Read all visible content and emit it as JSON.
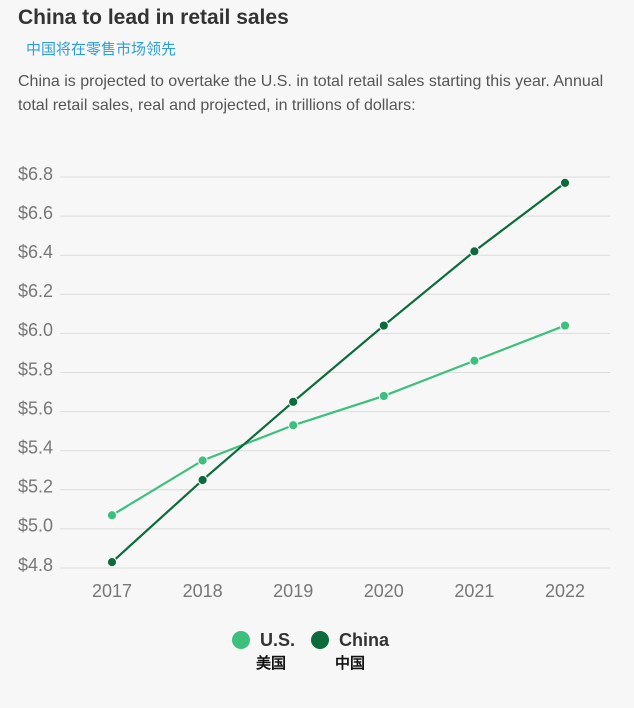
{
  "header": {
    "title": "China to lead in retail sales",
    "subtitle_cn": "中国将在零售市场领先",
    "description": "China is projected to overtake the U.S. in total retail sales starting this year. Annual total retail sales, real and projected, in trillions of dollars:"
  },
  "chart_data": {
    "type": "line",
    "title": "China to lead in retail sales",
    "ylabel": "",
    "xlabel": "",
    "x": [
      "2017",
      "2018",
      "2019",
      "2020",
      "2021",
      "2022"
    ],
    "ylim": [
      4.8,
      6.8
    ],
    "yticks": [
      4.8,
      5.0,
      5.2,
      5.4,
      5.6,
      5.8,
      6.0,
      6.2,
      6.4,
      6.6,
      6.8
    ],
    "ytick_labels": [
      "$4.8",
      "$5.0",
      "$5.2",
      "$5.4",
      "$5.6",
      "$5.8",
      "$6.0",
      "$6.2",
      "$6.4",
      "$6.6",
      "$6.8"
    ],
    "grid": true,
    "legend_position": "bottom-center",
    "series": [
      {
        "name": "U.S.",
        "name_cn": "美国",
        "color": "#3dbf7d",
        "values": [
          5.07,
          5.35,
          5.53,
          5.68,
          5.86,
          6.04
        ]
      },
      {
        "name": "China",
        "name_cn": "中国",
        "color": "#0c6b3b",
        "values": [
          4.83,
          5.25,
          5.65,
          6.04,
          6.42,
          6.77
        ]
      }
    ]
  }
}
